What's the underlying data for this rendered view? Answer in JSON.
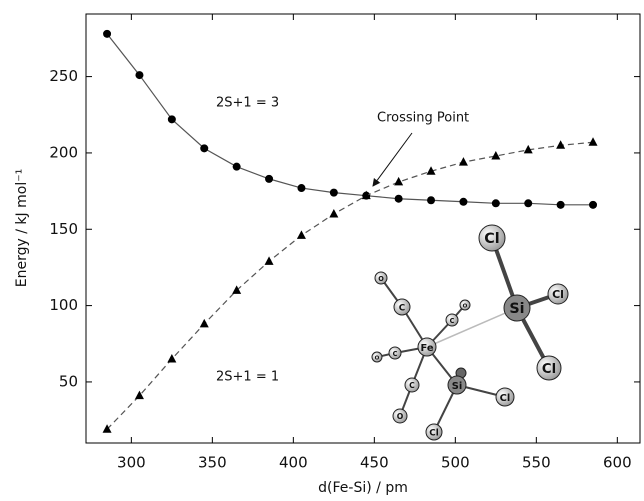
{
  "chart_data": {
    "type": "line",
    "x": [
      285,
      305,
      325,
      345,
      365,
      385,
      405,
      425,
      445,
      465,
      485,
      505,
      525,
      545,
      565,
      585
    ],
    "series": [
      {
        "color": "#000000",
        "line_color": "#555555",
        "dash": false,
        "marker": "circle",
        "values": [
          278,
          251,
          222,
          203,
          191,
          183,
          177,
          174,
          172,
          170,
          169,
          168,
          167,
          167,
          166,
          166
        ]
      },
      {
        "color": "#000000",
        "line_color": "#555555",
        "dash": true,
        "marker": "triangle",
        "values": [
          19,
          41,
          65,
          88,
          110,
          129,
          146,
          160,
          172,
          181,
          188,
          194,
          198,
          202,
          205,
          207
        ]
      }
    ],
    "xlabel": "d(Fe-Si) / pm",
    "ylabel": "Energy / kJ mol⁻¹",
    "xlim": [
      272,
      614
    ],
    "ylim": [
      10,
      291
    ],
    "xticks": [
      300,
      350,
      400,
      450,
      500,
      550,
      600
    ],
    "yticks": [
      50,
      100,
      150,
      200,
      250
    ],
    "annotations": [
      "2S+1 = 3",
      "2S+1 = 1",
      "Crossing Point"
    ],
    "molecule_atoms": [
      "Cl",
      "Si",
      "Cl",
      "Cl",
      "Fe",
      "C",
      "O",
      "C",
      "O",
      "C",
      "O",
      "C",
      "O",
      "Si",
      "Cl",
      "Cl"
    ]
  }
}
